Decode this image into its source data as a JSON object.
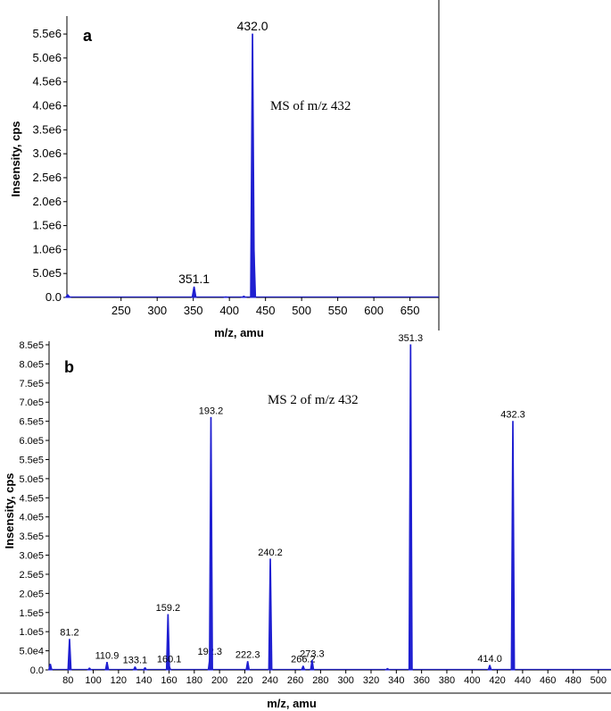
{
  "chart_data": [
    {
      "type": "line",
      "panel_label": "a",
      "annotation": "MS of m/z 432",
      "xlabel": "m/z, amu",
      "ylabel": "Insensity, cps",
      "xlim": [
        175,
        690
      ],
      "ylim": [
        0,
        5800000.0
      ],
      "x_ticks": [
        250,
        300,
        350,
        400,
        450,
        500,
        550,
        600,
        650
      ],
      "y_ticks": [
        {
          "value": 0,
          "label": "0.0"
        },
        {
          "value": 500000,
          "label": "5.0e5"
        },
        {
          "value": 1000000,
          "label": "1.0e6"
        },
        {
          "value": 1500000,
          "label": "1.5e6"
        },
        {
          "value": 2000000,
          "label": "2.0e6"
        },
        {
          "value": 2500000,
          "label": "2.5e6"
        },
        {
          "value": 3000000,
          "label": "3.0e6"
        },
        {
          "value": 3500000,
          "label": "3.5e6"
        },
        {
          "value": 4000000,
          "label": "4.0e6"
        },
        {
          "value": 4500000,
          "label": "4.5e6"
        },
        {
          "value": 5000000,
          "label": "5.0e6"
        },
        {
          "value": 5500000,
          "label": "5.5e6"
        }
      ],
      "series_color": "#1f1fd1",
      "peaks": [
        {
          "mz": 176,
          "intensity": 60000,
          "label": ""
        },
        {
          "mz": 177,
          "intensity": 40000,
          "label": ""
        },
        {
          "mz": 351.1,
          "intensity": 220000,
          "label": "351.1"
        },
        {
          "mz": 395,
          "intensity": 15000,
          "label": ""
        },
        {
          "mz": 420,
          "intensity": 30000,
          "label": ""
        },
        {
          "mz": 432.0,
          "intensity": 5500000,
          "label": "432.0"
        },
        {
          "mz": 433.5,
          "intensity": 1200000,
          "label": ""
        }
      ]
    },
    {
      "type": "line",
      "panel_label": "b",
      "annotation": "MS 2 of m/z 432",
      "xlabel": "m/z, amu",
      "ylabel": "Insensity, cps",
      "xlim": [
        65,
        510
      ],
      "ylim": [
        0,
        850000
      ],
      "x_ticks": [
        80,
        100,
        120,
        140,
        160,
        180,
        200,
        220,
        240,
        260,
        280,
        300,
        320,
        340,
        360,
        380,
        400,
        420,
        440,
        460,
        480,
        500
      ],
      "y_ticks": [
        {
          "value": 0,
          "label": "0.0"
        },
        {
          "value": 50000,
          "label": "5.0e4"
        },
        {
          "value": 100000,
          "label": "1.0e5"
        },
        {
          "value": 150000,
          "label": "1.5e5"
        },
        {
          "value": 200000,
          "label": "2.0e5"
        },
        {
          "value": 250000,
          "label": "2.5e5"
        },
        {
          "value": 300000,
          "label": "3.0e5"
        },
        {
          "value": 350000,
          "label": "3.5e5"
        },
        {
          "value": 400000,
          "label": "4.0e5"
        },
        {
          "value": 450000,
          "label": "4.5e5"
        },
        {
          "value": 500000,
          "label": "5.0e5"
        },
        {
          "value": 550000,
          "label": "5.5e5"
        },
        {
          "value": 600000,
          "label": "6.0e5"
        },
        {
          "value": 650000,
          "label": "6.5e5"
        },
        {
          "value": 700000,
          "label": "7.0e5"
        },
        {
          "value": 750000,
          "label": "7.5e5"
        },
        {
          "value": 800000,
          "label": "8.0e5"
        },
        {
          "value": 850000,
          "label": "8.5e5"
        }
      ],
      "series_color": "#1f1fd1",
      "peaks": [
        {
          "mz": 66,
          "intensity": 15000,
          "label": ""
        },
        {
          "mz": 81.2,
          "intensity": 80000,
          "label": "81.2"
        },
        {
          "mz": 97,
          "intensity": 5000,
          "label": ""
        },
        {
          "mz": 110.9,
          "intensity": 20000,
          "label": "110.9"
        },
        {
          "mz": 133.1,
          "intensity": 8000,
          "label": "133.1"
        },
        {
          "mz": 141,
          "intensity": 6000,
          "label": ""
        },
        {
          "mz": 159.2,
          "intensity": 145000,
          "label": "159.2"
        },
        {
          "mz": 160.1,
          "intensity": 10000,
          "label": "160.1"
        },
        {
          "mz": 192.3,
          "intensity": 30000,
          "label": "192.3"
        },
        {
          "mz": 193.2,
          "intensity": 660000,
          "label": "193.2"
        },
        {
          "mz": 222.3,
          "intensity": 22000,
          "label": "222.3"
        },
        {
          "mz": 240.2,
          "intensity": 290000,
          "label": "240.2"
        },
        {
          "mz": 266.2,
          "intensity": 10000,
          "label": "266.2"
        },
        {
          "mz": 273.3,
          "intensity": 25000,
          "label": "273.3"
        },
        {
          "mz": 333,
          "intensity": 4000,
          "label": ""
        },
        {
          "mz": 351.3,
          "intensity": 850000,
          "label": "351.3"
        },
        {
          "mz": 414.0,
          "intensity": 12000,
          "label": "414.0"
        },
        {
          "mz": 432.3,
          "intensity": 650000,
          "label": "432.3"
        }
      ]
    }
  ]
}
